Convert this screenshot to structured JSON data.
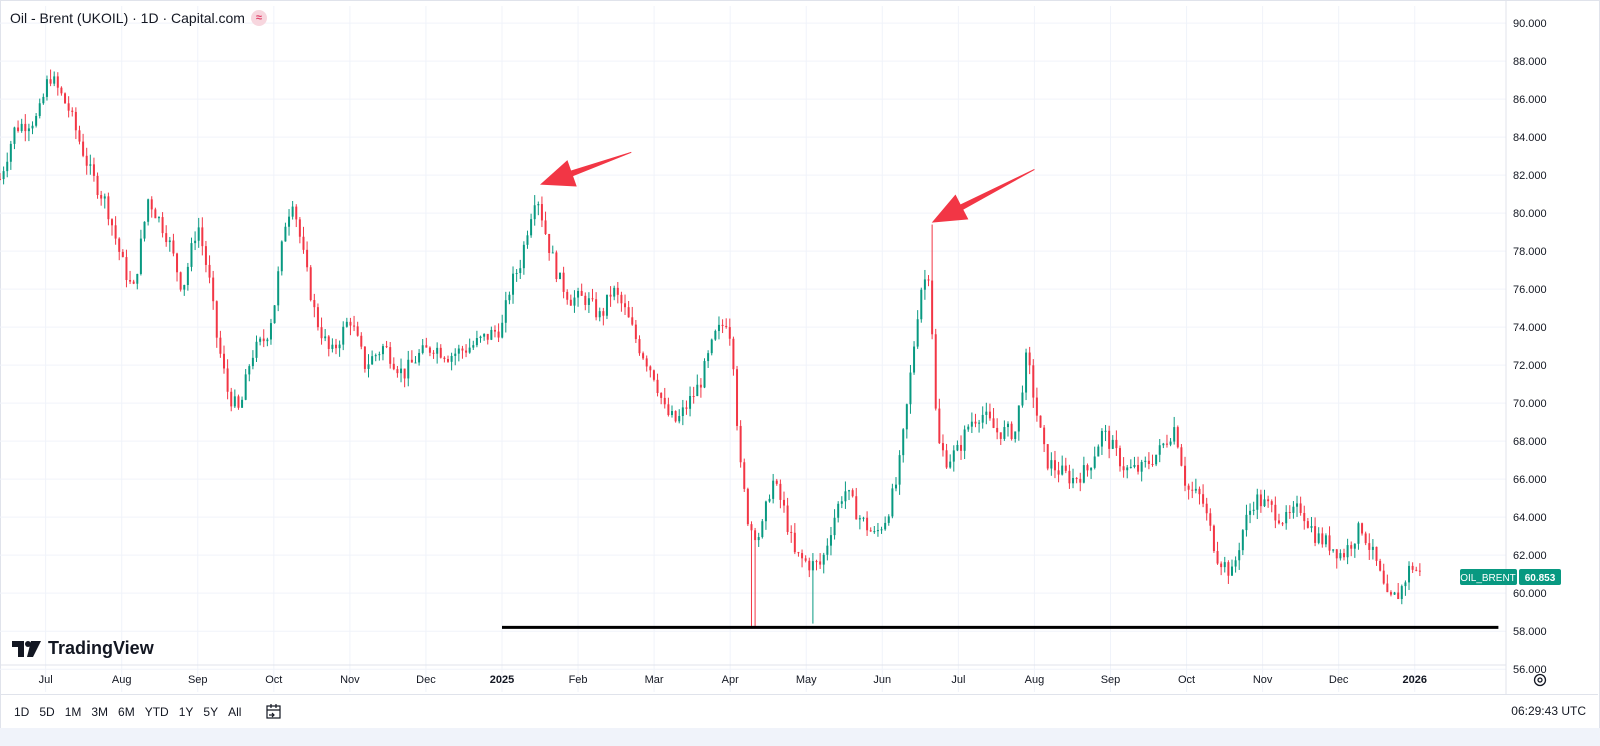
{
  "header": {
    "symbol_title": "Oil - Brent (UKOIL) · 1D · Capital.com",
    "badge": "≈"
  },
  "logo_text": "TradingView",
  "price_tag": {
    "symbol": "OIL_BRENT",
    "price": "60.853",
    "color": "#089981"
  },
  "colors": {
    "up": "#089981",
    "down": "#f23645",
    "annotation": "#f23645",
    "support": "#000000"
  },
  "ranges": [
    "1D",
    "5D",
    "1M",
    "3M",
    "6M",
    "YTD",
    "1Y",
    "5Y",
    "All"
  ],
  "clock": "06:29:43 UTC",
  "icons": {
    "calendar": "calendar-goto-icon",
    "settings": "gear-icon"
  },
  "chart_data": {
    "type": "candlestick",
    "yaxis": {
      "ticks": [
        "90.000",
        "88.000",
        "86.000",
        "84.000",
        "82.000",
        "80.000",
        "78.000",
        "76.000",
        "74.000",
        "72.000",
        "70.000",
        "68.000",
        "66.000",
        "64.000",
        "62.000",
        "60.000",
        "58.000",
        "56.000"
      ],
      "range": [
        54.8,
        90.9
      ]
    },
    "xaxis": {
      "labels": [
        "Jul",
        "Aug",
        "Sep",
        "Oct",
        "Nov",
        "Dec",
        "2025",
        "Feb",
        "Mar",
        "Apr",
        "May",
        "Jun",
        "Jul",
        "Aug",
        "Sep",
        "Oct",
        "Nov",
        "Dec",
        "2026"
      ],
      "label_positions": [
        0.0,
        1.0,
        2.0,
        3.0,
        4.0,
        5.0,
        6.0,
        7.0,
        8.0,
        9.0,
        10.0,
        11.0,
        12.0,
        13.0,
        14.0,
        15.0,
        16.0,
        17.0,
        18.0
      ],
      "range": [
        -0.6,
        19.2
      ]
    },
    "series_anchors": [
      [
        -0.6,
        81.8
      ],
      [
        -0.4,
        84.5
      ],
      [
        -0.1,
        85.0
      ],
      [
        0.05,
        87.3
      ],
      [
        0.3,
        85.5
      ],
      [
        0.6,
        82.0
      ],
      [
        0.8,
        80.5
      ],
      [
        1.0,
        77.5
      ],
      [
        1.15,
        75.8
      ],
      [
        1.35,
        80.8
      ],
      [
        1.6,
        78.8
      ],
      [
        1.8,
        76.0
      ],
      [
        2.0,
        79.5
      ],
      [
        2.15,
        76.5
      ],
      [
        2.25,
        73.5
      ],
      [
        2.4,
        70.5
      ],
      [
        2.55,
        69.5
      ],
      [
        2.7,
        72.5
      ],
      [
        2.9,
        73.5
      ],
      [
        3.0,
        75.0
      ],
      [
        3.15,
        79.5
      ],
      [
        3.25,
        80.8
      ],
      [
        3.4,
        77.5
      ],
      [
        3.55,
        74.5
      ],
      [
        3.75,
        72.5
      ],
      [
        4.0,
        74.5
      ],
      [
        4.2,
        72.0
      ],
      [
        4.45,
        73.0
      ],
      [
        4.7,
        71.5
      ],
      [
        4.9,
        72.5
      ],
      [
        5.1,
        73.0
      ],
      [
        5.3,
        72.5
      ],
      [
        5.6,
        73.0
      ],
      [
        5.8,
        73.5
      ],
      [
        6.0,
        74.0
      ],
      [
        6.1,
        76.0
      ],
      [
        6.25,
        77.5
      ],
      [
        6.35,
        79.5
      ],
      [
        6.45,
        81.2
      ],
      [
        6.6,
        78.5
      ],
      [
        6.75,
        76.5
      ],
      [
        6.9,
        75.5
      ],
      [
        7.1,
        75.5
      ],
      [
        7.3,
        74.5
      ],
      [
        7.45,
        76.0
      ],
      [
        7.6,
        75.0
      ],
      [
        7.8,
        73.0
      ],
      [
        8.0,
        71.5
      ],
      [
        8.15,
        69.5
      ],
      [
        8.3,
        69.0
      ],
      [
        8.6,
        71.0
      ],
      [
        8.8,
        73.5
      ],
      [
        8.97,
        74.5
      ],
      [
        9.05,
        72.0
      ],
      [
        9.12,
        67.0
      ],
      [
        9.25,
        63.5
      ],
      [
        9.4,
        63.0
      ],
      [
        9.55,
        66.0
      ],
      [
        9.7,
        64.5
      ],
      [
        9.85,
        62.0
      ],
      [
        10.05,
        61.5
      ],
      [
        10.2,
        61.5
      ],
      [
        10.35,
        63.8
      ],
      [
        10.5,
        65.5
      ],
      [
        10.7,
        64.0
      ],
      [
        10.9,
        63.0
      ],
      [
        11.05,
        64.0
      ],
      [
        11.2,
        66.0
      ],
      [
        11.3,
        69.0
      ],
      [
        11.4,
        72.5
      ],
      [
        11.5,
        76.0
      ],
      [
        11.62,
        77.0
      ],
      [
        11.72,
        68.0
      ],
      [
        11.85,
        67.0
      ],
      [
        12.0,
        67.5
      ],
      [
        12.15,
        69.0
      ],
      [
        12.3,
        69.5
      ],
      [
        12.5,
        68.5
      ],
      [
        12.75,
        68.5
      ],
      [
        12.9,
        72.5
      ],
      [
        13.05,
        69.0
      ],
      [
        13.15,
        67.0
      ],
      [
        13.3,
        66.5
      ],
      [
        13.5,
        66.0
      ],
      [
        13.7,
        66.5
      ],
      [
        13.9,
        68.5
      ],
      [
        14.05,
        67.5
      ],
      [
        14.2,
        66.5
      ],
      [
        14.4,
        66.5
      ],
      [
        14.65,
        67.5
      ],
      [
        14.85,
        68.8
      ],
      [
        15.0,
        65.5
      ],
      [
        15.2,
        65.0
      ],
      [
        15.4,
        62.0
      ],
      [
        15.6,
        61.0
      ],
      [
        15.75,
        63.5
      ],
      [
        15.9,
        65.0
      ],
      [
        16.1,
        64.5
      ],
      [
        16.3,
        63.8
      ],
      [
        16.5,
        64.5
      ],
      [
        16.7,
        63.0
      ],
      [
        16.9,
        62.5
      ],
      [
        17.05,
        62.0
      ],
      [
        17.3,
        63.5
      ],
      [
        17.5,
        61.5
      ],
      [
        17.65,
        59.5
      ],
      [
        17.8,
        60.0
      ],
      [
        17.95,
        61.5
      ],
      [
        18.1,
        60.85
      ]
    ],
    "annotations": {
      "support_line": {
        "y": 58.2,
        "x_start": 6.0,
        "x_end": 19.1
      },
      "arrows": [
        {
          "from": [
            7.7,
            83.2
          ],
          "to": [
            6.5,
            81.5
          ]
        },
        {
          "from": [
            13.0,
            82.3
          ],
          "to": [
            11.65,
            79.5
          ]
        }
      ]
    }
  }
}
